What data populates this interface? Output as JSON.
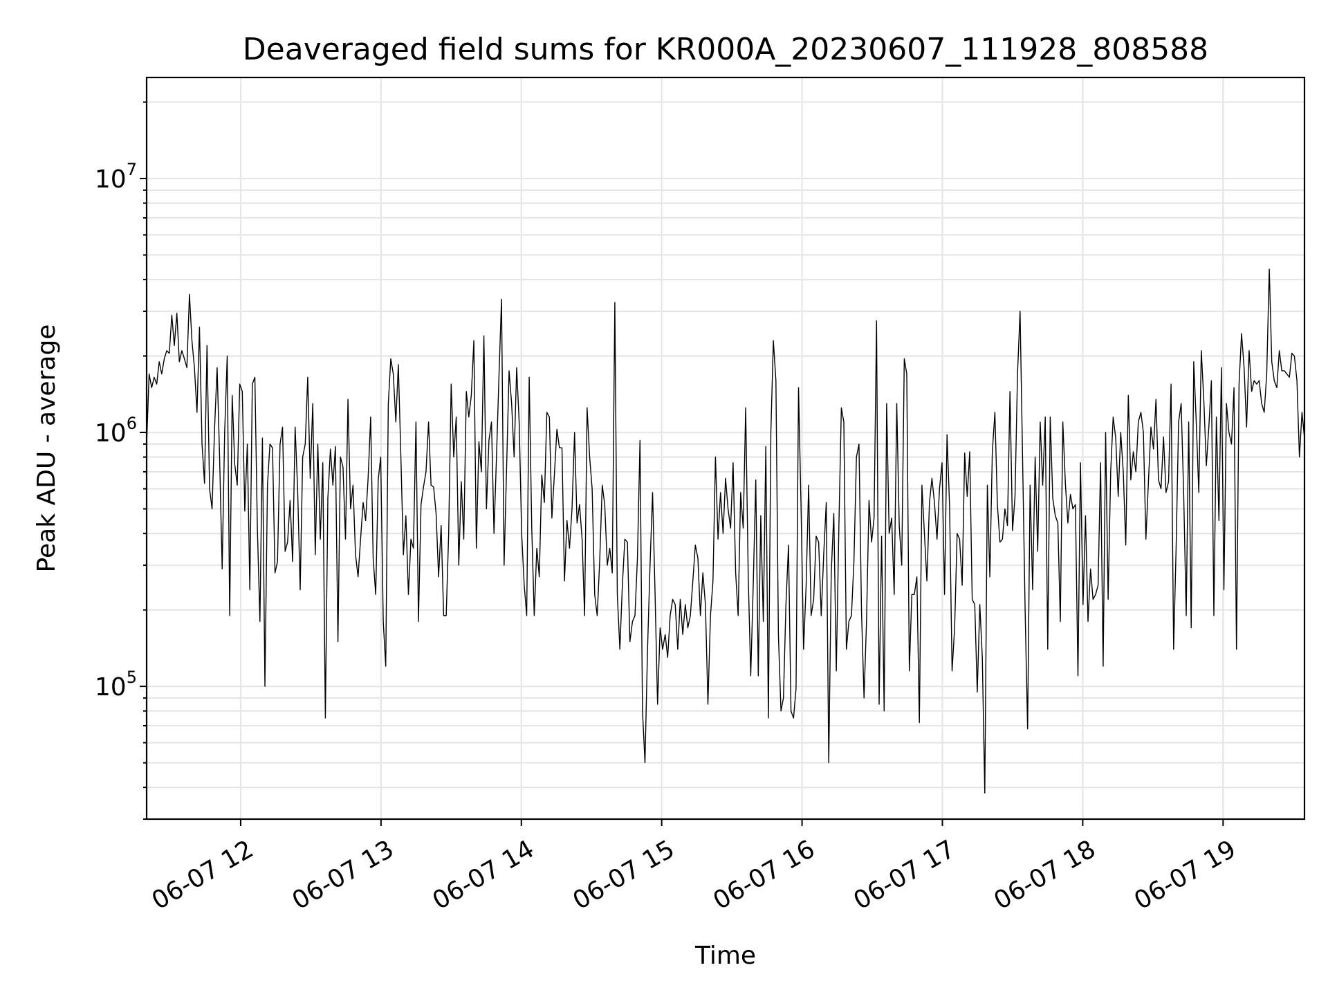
{
  "chart_data": {
    "type": "line",
    "title": "Deaveraged field sums for KR000A_20230607_111928_808588",
    "xlabel": "Time",
    "ylabel": "Peak ADU - average",
    "yscale": "log",
    "ylim": [
      30000,
      25000000
    ],
    "y_ticks": [
      {
        "base": "10",
        "exp": "5",
        "value": 100000
      },
      {
        "base": "10",
        "exp": "6",
        "value": 1000000
      },
      {
        "base": "10",
        "exp": "7",
        "value": 10000000
      }
    ],
    "x_ticks": [
      {
        "label": "06-07 12",
        "hour": 12
      },
      {
        "label": "06-07 13",
        "hour": 13
      },
      {
        "label": "06-07 14",
        "hour": 14
      },
      {
        "label": "06-07 15",
        "hour": 15
      },
      {
        "label": "06-07 16",
        "hour": 16
      },
      {
        "label": "06-07 17",
        "hour": 17
      },
      {
        "label": "06-07 18",
        "hour": 18
      },
      {
        "label": "06-07 19",
        "hour": 19
      }
    ],
    "x_unit": "hours on 2023-06-07",
    "xlim": [
      11.33,
      19.58
    ],
    "grid": true,
    "series": [
      {
        "name": "deaveraged field sum",
        "x_start": 11.33,
        "x_end": 19.58,
        "values": [
          900000,
          1700000,
          1500000,
          1650000,
          1550000,
          1900000,
          1700000,
          1950000,
          2100000,
          2050000,
          2900000,
          2200000,
          2950000,
          1900000,
          2100000,
          1950000,
          1800000,
          3500000,
          2300000,
          1800000,
          1200000,
          2600000,
          900000,
          630000,
          2200000,
          600000,
          500000,
          1050000,
          1800000,
          800000,
          290000,
          1000000,
          2000000,
          190000,
          1400000,
          750000,
          620000,
          1550000,
          1450000,
          490000,
          900000,
          240000,
          1550000,
          1650000,
          420000,
          180000,
          950000,
          100000,
          620000,
          900000,
          870000,
          280000,
          310000,
          900000,
          1050000,
          340000,
          370000,
          540000,
          310000,
          1050000,
          600000,
          240000,
          800000,
          900000,
          1650000,
          660000,
          1300000,
          330000,
          900000,
          380000,
          760000,
          75000,
          550000,
          860000,
          620000,
          880000,
          150000,
          800000,
          730000,
          380000,
          1350000,
          500000,
          620000,
          330000,
          270000,
          380000,
          530000,
          450000,
          660000,
          1150000,
          320000,
          230000,
          650000,
          800000,
          180000,
          120000,
          1300000,
          1950000,
          1700000,
          1100000,
          1850000,
          800000,
          330000,
          470000,
          230000,
          380000,
          350000,
          1100000,
          180000,
          520000,
          610000,
          700000,
          1100000,
          620000,
          610000,
          480000,
          270000,
          430000,
          190000,
          190000,
          400000,
          1550000,
          800000,
          1150000,
          300000,
          640000,
          380000,
          1450000,
          1150000,
          1400000,
          2300000,
          350000,
          920000,
          700000,
          2400000,
          500000,
          930000,
          1100000,
          400000,
          800000,
          1700000,
          3350000,
          300000,
          720000,
          1750000,
          1300000,
          800000,
          1800000,
          1100000,
          400000,
          250000,
          190000,
          1650000,
          420000,
          190000,
          350000,
          270000,
          680000,
          530000,
          1200000,
          1150000,
          460000,
          680000,
          1030000,
          870000,
          870000,
          260000,
          450000,
          350000,
          500000,
          1000000,
          440000,
          520000,
          380000,
          190000,
          1250000,
          800000,
          600000,
          230000,
          190000,
          310000,
          620000,
          520000,
          300000,
          350000,
          280000,
          3250000,
          230000,
          140000,
          250000,
          380000,
          370000,
          150000,
          180000,
          190000,
          320000,
          930000,
          80000,
          50000,
          140000,
          300000,
          580000,
          230000,
          85000,
          170000,
          140000,
          160000,
          130000,
          190000,
          220000,
          210000,
          140000,
          220000,
          160000,
          210000,
          170000,
          190000,
          260000,
          360000,
          320000,
          190000,
          280000,
          210000,
          85000,
          190000,
          260000,
          800000,
          380000,
          580000,
          400000,
          660000,
          500000,
          420000,
          760000,
          280000,
          190000,
          580000,
          420000,
          1250000,
          270000,
          110000,
          250000,
          650000,
          110000,
          470000,
          180000,
          880000,
          75000,
          1000000,
          2300000,
          1600000,
          160000,
          80000,
          90000,
          210000,
          360000,
          80000,
          75000,
          98000,
          1500000,
          500000,
          140000,
          250000,
          620000,
          190000,
          220000,
          390000,
          370000,
          190000,
          330000,
          530000,
          50000,
          280000,
          480000,
          115000,
          420000,
          1250000,
          1100000,
          140000,
          180000,
          190000,
          310000,
          800000,
          900000,
          200000,
          90000,
          180000,
          540000,
          370000,
          460000,
          2750000,
          85000,
          390000,
          80000,
          1300000,
          400000,
          460000,
          230000,
          1300000,
          430000,
          300000,
          1950000,
          1700000,
          115000,
          230000,
          230000,
          270000,
          72000,
          620000,
          400000,
          260000,
          530000,
          660000,
          530000,
          380000,
          600000,
          760000,
          230000,
          980000,
          510000,
          115000,
          170000,
          400000,
          380000,
          250000,
          830000,
          560000,
          840000,
          220000,
          210000,
          95000,
          210000,
          130000,
          38000,
          620000,
          270000,
          840000,
          1200000,
          520000,
          370000,
          380000,
          500000,
          430000,
          1450000,
          410000,
          560000,
          1700000,
          3000000,
          800000,
          200000,
          68000,
          620000,
          240000,
          800000,
          340000,
          1100000,
          620000,
          1150000,
          140000,
          1150000,
          550000,
          470000,
          440000,
          180000,
          1100000,
          630000,
          440000,
          570000,
          500000,
          520000,
          110000,
          760000,
          210000,
          470000,
          180000,
          290000,
          220000,
          230000,
          250000,
          760000,
          120000,
          1000000,
          220000,
          700000,
          1150000,
          950000,
          560000,
          1000000,
          700000,
          360000,
          1400000,
          650000,
          840000,
          700000,
          1100000,
          1200000,
          1000000,
          380000,
          640000,
          1050000,
          860000,
          1350000,
          650000,
          600000,
          960000,
          580000,
          640000,
          1550000,
          140000,
          350000,
          1100000,
          1300000,
          580000,
          190000,
          1100000,
          170000,
          1900000,
          1100000,
          580000,
          2100000,
          1350000,
          740000,
          1050000,
          1600000,
          190000,
          1150000,
          450000,
          1800000,
          240000,
          1300000,
          1000000,
          900000,
          1500000,
          140000,
          1550000,
          2450000,
          1800000,
          1050000,
          2100000,
          1450000,
          1600000,
          1550000,
          1600000,
          1300000,
          1200000,
          1700000,
          4400000,
          1900000,
          1600000,
          1500000,
          2100000,
          1750000,
          1750000,
          1700000,
          1650000,
          2050000,
          2000000,
          1600000,
          800000,
          1200000,
          950000
        ]
      }
    ]
  }
}
